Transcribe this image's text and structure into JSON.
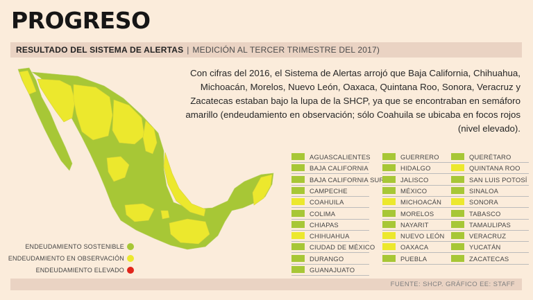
{
  "title": "PROGRESO",
  "subtitle": {
    "bold": "RESULTADO DEL SISTEMA DE ALERTAS",
    "separator": "|",
    "rest": "MEDICIÓN AL TERCER TRIMESTRE DEL 2017)"
  },
  "description": "Con cifras del 2016, el Sistema de Alertas arrojó que Baja California, Chihuahua, Michoacán, Morelos, Nuevo León, Oaxaca, Quintana Roo, Sonora, Veracruz y Zacatecas estaban bajo la lupa de la SHCP, ya que se encontraban en semáforo amarillo (endeudamiento en observación; sólo Coahuila se ubicaba en focos rojos (nivel elevado).",
  "colors": {
    "green": "#a7c736",
    "yellow": "#ece82d",
    "red": "#e1251b",
    "background": "#fbecdb",
    "band": "#ead3c3"
  },
  "legend": [
    {
      "label": "ENDEUDAMIENTO SOSTENIBLE",
      "status": "green"
    },
    {
      "label": "ENDEUDAMIENTO EN OBSERVACIÓN",
      "status": "yellow"
    },
    {
      "label": "ENDEUDAMIENTO ELEVADO",
      "status": "red"
    }
  ],
  "states": [
    {
      "name": "AGUASCALIENTES",
      "status": "green"
    },
    {
      "name": "BAJA CALIFORNIA",
      "status": "green"
    },
    {
      "name": "BAJA CALIFORNIA SUR",
      "status": "green"
    },
    {
      "name": "CAMPECHE",
      "status": "green"
    },
    {
      "name": "COAHUILA",
      "status": "yellow"
    },
    {
      "name": "COLIMA",
      "status": "green"
    },
    {
      "name": "CHIAPAS",
      "status": "green"
    },
    {
      "name": "CHIHUAHUA",
      "status": "yellow"
    },
    {
      "name": "CIUDAD DE MÉXICO",
      "status": "green"
    },
    {
      "name": "DURANGO",
      "status": "green"
    },
    {
      "name": "GUANAJUATO",
      "status": "green"
    },
    {
      "name": "GUERRERO",
      "status": "green"
    },
    {
      "name": "HIDALGO",
      "status": "green"
    },
    {
      "name": "JALISCO",
      "status": "green"
    },
    {
      "name": "MÉXICO",
      "status": "green"
    },
    {
      "name": "MICHOACÁN",
      "status": "yellow"
    },
    {
      "name": "MORELOS",
      "status": "green"
    },
    {
      "name": "NAYARIT",
      "status": "green"
    },
    {
      "name": "NUEVO LEÓN",
      "status": "yellow"
    },
    {
      "name": "OAXACA",
      "status": "yellow"
    },
    {
      "name": "PUEBLA",
      "status": "green"
    },
    {
      "name": "QUERÉTARO",
      "status": "green"
    },
    {
      "name": "QUINTANA ROO",
      "status": "yellow"
    },
    {
      "name": "SAN LUIS POTOSÍ",
      "status": "green"
    },
    {
      "name": "SINALOA",
      "status": "green"
    },
    {
      "name": "SONORA",
      "status": "yellow"
    },
    {
      "name": "TABASCO",
      "status": "green"
    },
    {
      "name": "TAMAULIPAS",
      "status": "green"
    },
    {
      "name": "VERACRUZ",
      "status": "green"
    },
    {
      "name": "YUCATÁN",
      "status": "green"
    },
    {
      "name": "ZACATECAS",
      "status": "green"
    }
  ],
  "footer": "FUENTE: SHCP.  GRÁFICO EE: STAFF"
}
